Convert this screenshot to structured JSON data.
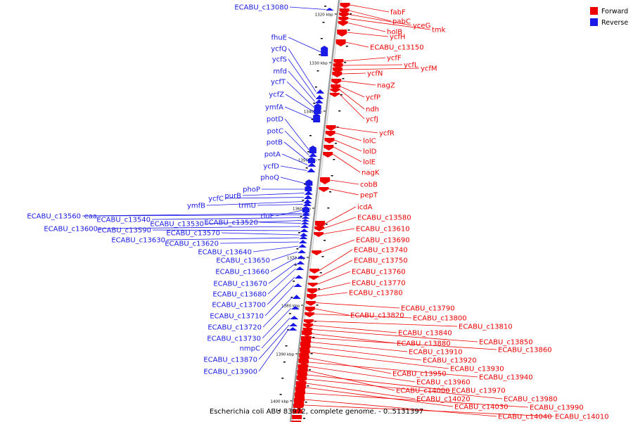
{
  "caption": "Escherichia coli ABU 83972, complete genome. - 0..5131397",
  "colors": {
    "forward": "#ee0000",
    "reverse": "#1a1ae6",
    "axis": "#999999",
    "text": "#000000"
  },
  "legend": [
    {
      "label": "Forward",
      "strand": "forward"
    },
    {
      "label": "Reverse",
      "strand": "reverse"
    }
  ],
  "ruler": [
    "1320 kbp",
    "1330 kbp",
    "1340 kbp",
    "1350 kbp",
    "1360 kbp",
    "1370 kbp",
    "1380 kbp",
    "1390 kbp",
    "1400 kbp"
  ],
  "reverse_genes": [
    "ECABU_c13080",
    "fhuE",
    "ycfQ",
    "ycfS",
    "mfd",
    "ycfT",
    "ycfZ",
    "ymfA",
    "potD",
    "potC",
    "potB",
    "potA",
    "ycfD",
    "phoQ",
    "phoP",
    "purB",
    "ycfC",
    "ymfB",
    "trmU",
    "rluE",
    "ECABU_c13560",
    "eaa",
    "ECABU_c13540",
    "ECABU_c13530",
    "ECABU_c13520",
    "ECABU_c13600",
    "ECABU_c13590",
    "ECABU_c13570",
    "ECABU_c13630",
    "ECABU_c13620",
    "ECABU_c13640",
    "ECABU_c13650",
    "ECABU_c13660",
    "ECABU_c13670",
    "ECABU_c13680",
    "ECABU_c13700",
    "ECABU_c13710",
    "ECABU_c13720",
    "ECABU_c13730",
    "nmpC",
    "ECABU_c13870",
    "ECABU_c13900"
  ],
  "forward_genes": [
    "fabF",
    "pabC",
    "yceG",
    "tmk",
    "holB",
    "ycfH",
    "ECABU_c13150",
    "ycfF",
    "ycfL",
    "ycfM",
    "ycfN",
    "nagZ",
    "ycfP",
    "ndh",
    "ycfJ",
    "ycfR",
    "lolC",
    "lolD",
    "lolE",
    "nagK",
    "cobB",
    "pepT",
    "icdA",
    "ECABU_c13580",
    "ECABU_c13610",
    "ECABU_c13690",
    "ECABU_c13740",
    "ECABU_c13750",
    "ECABU_c13760",
    "ECABU_c13770",
    "ECABU_c13780",
    "ECABU_c13790",
    "ECABU_c13820",
    "ECABU_c13800",
    "ECABU_c13810",
    "ECABU_c13840",
    "ECABU_c13850",
    "ECABU_c13880",
    "ECABU_c13860",
    "ECABU_c13910",
    "ECABU_c13920",
    "ECABU_c13930",
    "ECABU_c13950",
    "ECABU_c13940",
    "ECABU_c13960",
    "ECABU_c14000",
    "ECABU_c13970",
    "ECABU_c13980",
    "ECABU_c14020",
    "ECABU_c14030",
    "ECABU_c13990",
    "ECABU_c14040",
    "ECABU_c14010"
  ]
}
